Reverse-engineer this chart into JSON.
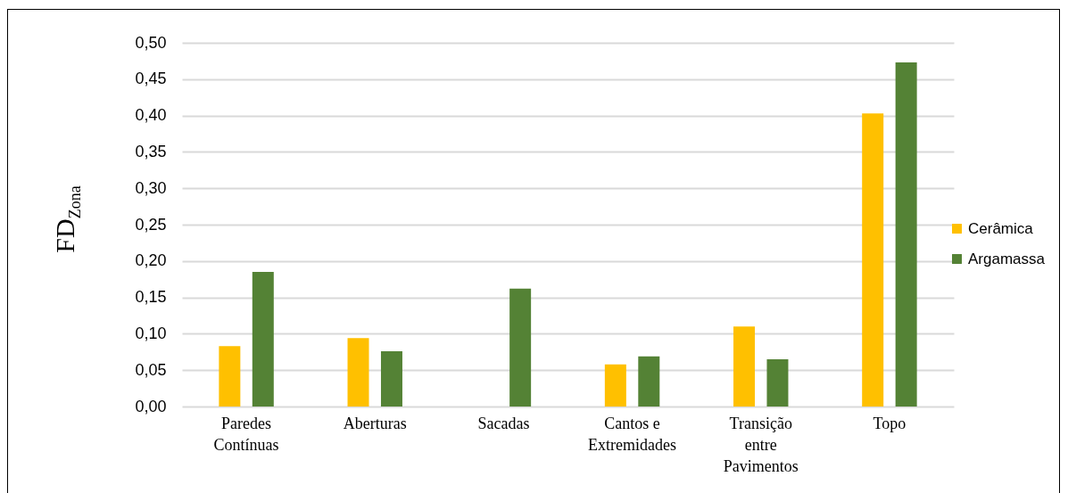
{
  "chart_data": {
    "type": "bar",
    "ylabel": "FD$_{Zona}$",
    "categories": [
      "Paredes Contínuas",
      "Aberturas",
      "Sacadas",
      "Cantos e Extremidades",
      "Transição entre Pavimentos",
      "Topo"
    ],
    "series": [
      {
        "name": "Cerâmica",
        "color": "#ffc000",
        "values": [
          0.083,
          0.094,
          null,
          0.058,
          0.11,
          0.403
        ]
      },
      {
        "name": "Argamassa",
        "color": "#548235",
        "values": [
          0.185,
          0.076,
          0.162,
          0.069,
          0.065,
          0.473
        ]
      }
    ],
    "ylim": [
      0,
      0.5
    ],
    "yticks": [
      {
        "value": 0,
        "label": "0,00"
      },
      {
        "value": 0.05,
        "label": "0,05"
      },
      {
        "value": 0.1,
        "label": "0,10"
      },
      {
        "value": 0.15,
        "label": "0,15"
      },
      {
        "value": 0.2,
        "label": "0,20"
      },
      {
        "value": 0.25,
        "label": "0,25"
      },
      {
        "value": 0.3,
        "label": "0,30"
      },
      {
        "value": 0.35,
        "label": "0,35"
      },
      {
        "value": 0.4,
        "label": "0,40"
      },
      {
        "value": 0.45,
        "label": "0,45"
      },
      {
        "value": 0.5,
        "label": "0,50"
      }
    ],
    "grid": "y",
    "legend": "right"
  }
}
